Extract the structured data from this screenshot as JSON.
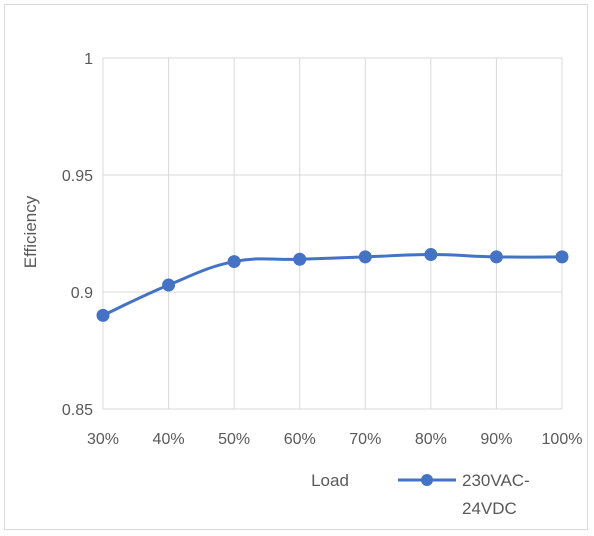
{
  "chart_data": {
    "type": "line",
    "categories": [
      "30%",
      "40%",
      "50%",
      "60%",
      "70%",
      "80%",
      "90%",
      "100%"
    ],
    "series": [
      {
        "name": "230VAC-24VDC",
        "values": [
          0.89,
          0.903,
          0.913,
          0.914,
          0.915,
          0.916,
          0.915,
          0.915
        ],
        "color": "#4472c4"
      }
    ],
    "y_ticks": [
      "1",
      "0.95",
      "0.9",
      "0.85"
    ],
    "y_tick_values": [
      1,
      0.95,
      0.9,
      0.85
    ],
    "ylim": [
      0.85,
      1
    ],
    "xlabel": "Load",
    "ylabel": "Efficiency",
    "legend_lines": [
      "230VAC-",
      "24VDC"
    ],
    "legend_position": "bottom-right",
    "grid": true,
    "colors": {
      "grid": "#d9d9d9",
      "text": "#595959",
      "series": "#4472c4"
    }
  }
}
